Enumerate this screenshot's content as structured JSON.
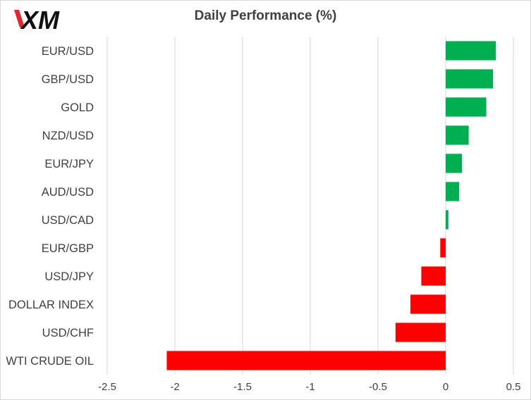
{
  "brand": {
    "logo_text": "XM",
    "logo_accent": "#e3262c"
  },
  "chart_data": {
    "type": "bar",
    "orientation": "horizontal",
    "title": "Daily Performance  (%)",
    "categories": [
      "EUR/USD",
      "GBP/USD",
      "GOLD",
      "NZD/USD",
      "EUR/JPY",
      "AUD/USD",
      "USD/CAD",
      "EUR/GBP",
      "USD/JPY",
      "DOLLAR INDEX",
      "USD/CHF",
      "WTI CRUDE OIL"
    ],
    "values": [
      0.37,
      0.35,
      0.3,
      0.17,
      0.12,
      0.1,
      0.02,
      -0.04,
      -0.18,
      -0.26,
      -0.37,
      -2.06
    ],
    "xlim": [
      -2.5,
      0.5
    ],
    "xticks": [
      -2.5,
      -2,
      -1.5,
      -1,
      -0.5,
      0,
      0.5
    ],
    "xtick_labels": [
      "-2.5",
      "-2",
      "-1.5",
      "-1",
      "-0.5",
      "0",
      "0.5"
    ],
    "grid": true,
    "colors": {
      "positive": "#00b050",
      "negative": "#ff0000",
      "grid": "#d9d9d9",
      "text": "#404040"
    }
  }
}
